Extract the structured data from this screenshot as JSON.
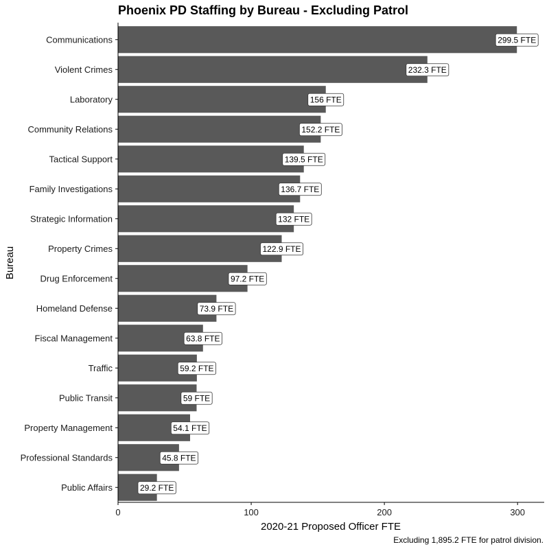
{
  "chart_data": {
    "type": "bar",
    "orientation": "horizontal",
    "title": "Phoenix PD Staffing by Bureau - Excluding Patrol",
    "xlabel": "2020-21 Proposed Officer FTE",
    "ylabel": "Bureau",
    "caption": "Excluding 1,895.2 FTE for patrol division.",
    "xlim": [
      0,
      320
    ],
    "xticks": [
      0,
      100,
      200,
      300
    ],
    "xtick_labels": [
      "0",
      "100",
      "200",
      "300"
    ],
    "grid": false,
    "bar_color": "#595959",
    "categories": [
      "Communications",
      "Violent Crimes",
      "Laboratory",
      "Community Relations",
      "Tactical Support",
      "Family Investigations",
      "Strategic Information",
      "Property Crimes",
      "Drug Enforcement",
      "Homeland Defense",
      "Fiscal Management",
      "Traffic",
      "Public Transit",
      "Property Management",
      "Professional Standards",
      "Public Affairs"
    ],
    "values": [
      299.5,
      232.3,
      156,
      152.2,
      139.5,
      136.7,
      132,
      122.9,
      97.2,
      73.9,
      63.8,
      59.2,
      59,
      54.1,
      45.8,
      29.2
    ],
    "data_labels": [
      "299.5 FTE",
      "232.3 FTE",
      "156 FTE",
      "152.2 FTE",
      "139.5 FTE",
      "136.7 FTE",
      "132 FTE",
      "122.9 FTE",
      "97.2 FTE",
      "73.9 FTE",
      "63.8 FTE",
      "59.2 FTE",
      "59 FTE",
      "54.1 FTE",
      "45.8 FTE",
      "29.2 FTE"
    ]
  }
}
